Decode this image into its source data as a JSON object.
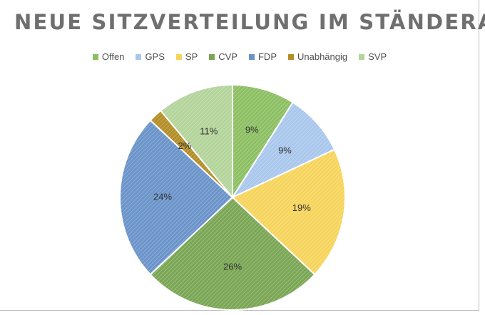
{
  "chart_data": {
    "type": "pie",
    "title": "NEUE SITZVERTEILUNG IM STÄNDERAT",
    "legend_position": "top",
    "categories": [
      "Offen",
      "GPS",
      "SP",
      "CVP",
      "FDP",
      "Unabhängig",
      "SVP"
    ],
    "values": [
      9,
      9,
      19,
      26,
      24,
      2,
      11
    ],
    "labels": [
      "9%",
      "9%",
      "19%",
      "26%",
      "24%",
      "2%",
      "11%"
    ],
    "colors": [
      "#8cbf62",
      "#a9c7ec",
      "#f6d45b",
      "#7aa654",
      "#6a93c9",
      "#b38d26",
      "#b3d49a"
    ]
  }
}
